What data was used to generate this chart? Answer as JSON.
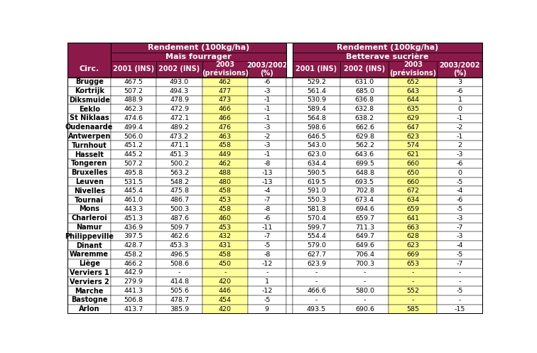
{
  "header_bg_color": "#8B1A4A",
  "header_text_color": "#FFFFFF",
  "yellow_bg_color": "#FFFF99",
  "white_bg_color": "#FFFFFF",
  "border_color": "#000000",
  "circs": [
    "Brugge",
    "Kortrijk",
    "Diksmuide",
    "Eeklo",
    "St Niklaas",
    "Oudenaarde",
    "Antwerpen",
    "Turnhout",
    "Hasselt",
    "Tongeren",
    "Bruxelles",
    "Leuven",
    "Nivelles",
    "Tournai",
    "Mons",
    "Charleroi",
    "Namur",
    "Philippeville",
    "Dinant",
    "Waremme",
    "Liège",
    "Verviers 1",
    "Verviers 2",
    "Marche",
    "Bastogne",
    "Arlon"
  ],
  "mais_2001": [
    "467.5",
    "507.2",
    "488.9",
    "462.3",
    "474.6",
    "499.4",
    "506.0",
    "451.2",
    "445.2",
    "507.2",
    "495.8",
    "531.5",
    "445.4",
    "461.0",
    "443.3",
    "451.3",
    "436.9",
    "397.5",
    "428.7",
    "458.2",
    "466.2",
    "442.9",
    "279.9",
    "441.3",
    "506.8",
    "413.7"
  ],
  "mais_2002": [
    "493.0",
    "494.3",
    "478.9",
    "472.9",
    "472.1",
    "489.2",
    "473.2",
    "471.1",
    "451.3",
    "500.2",
    "563.2",
    "548.2",
    "475.8",
    "486.7",
    "500.3",
    "487.6",
    "509.7",
    "462.6",
    "453.3",
    "496.5",
    "508.6",
    "-",
    "414.8",
    "505.6",
    "478.7",
    "385.9"
  ],
  "mais_2003": [
    "462",
    "477",
    "473",
    "466",
    "466",
    "476",
    "463",
    "458",
    "449",
    "462",
    "488",
    "480",
    "458",
    "453",
    "458",
    "460",
    "453",
    "432",
    "431",
    "458",
    "450",
    "-",
    "420",
    "446",
    "454",
    "420"
  ],
  "mais_2003_2002": [
    "-6",
    "-3",
    "-1",
    "-1",
    "-1",
    "-3",
    "-2",
    "-3",
    "-1",
    "-8",
    "-13",
    "-13",
    "-4",
    "-7",
    "-8",
    "-6",
    "-11",
    "-7",
    "-5",
    "-8",
    "-12",
    "-",
    "1",
    "-12",
    "-5",
    "9"
  ],
  "bett_2001": [
    "529.2",
    "561.4",
    "530.9",
    "589.4",
    "564.8",
    "598.6",
    "646.5",
    "543.0",
    "623.0",
    "634.4",
    "590.5",
    "619.5",
    "591.0",
    "550.3",
    "581.8",
    "570.4",
    "599.7",
    "554.4",
    "579.0",
    "627.7",
    "623.9",
    "-",
    "-",
    "466.6",
    "-",
    "493.5"
  ],
  "bett_2002": [
    "631.0",
    "685.0",
    "636.8",
    "632.8",
    "638.2",
    "662.6",
    "629.8",
    "562.2",
    "643.6",
    "699.5",
    "648.8",
    "693.5",
    "702.8",
    "673.4",
    "694.6",
    "659.7",
    "711.3",
    "649.7",
    "649.6",
    "706.4",
    "700.3",
    "-",
    "-",
    "580.0",
    "-",
    "690.6"
  ],
  "bett_2003": [
    "652",
    "643",
    "644",
    "635",
    "629",
    "647",
    "623",
    "574",
    "621",
    "660",
    "650",
    "660",
    "672",
    "634",
    "659",
    "641",
    "663",
    "628",
    "623",
    "669",
    "653",
    "-",
    "-",
    "552",
    "-",
    "585"
  ],
  "bett_2003_2002": [
    "3",
    "-6",
    "1",
    "0",
    "-1",
    "-2",
    "-1",
    "2",
    "-3",
    "-6",
    "0",
    "-5",
    "-4",
    "-6",
    "-5",
    "-3",
    "-7",
    "-3",
    "-4",
    "-5",
    "-7",
    "-",
    "-",
    "-5",
    "-",
    "-15"
  ]
}
